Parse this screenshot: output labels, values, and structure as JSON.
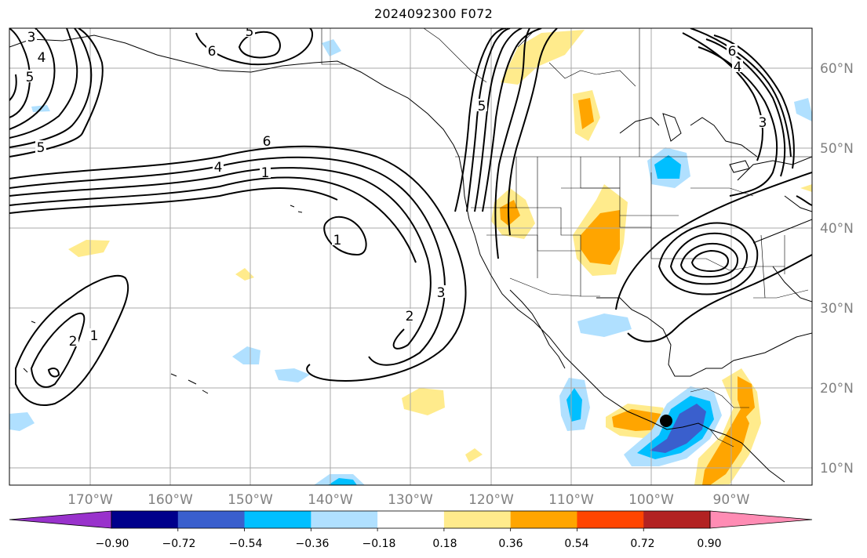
{
  "title": "2024092300 F072",
  "lon_labels": [
    "170°W",
    "160°W",
    "150°W",
    "140°W",
    "130°W",
    "120°W",
    "110°W",
    "100°W",
    "90°W"
  ],
  "lat_labels": [
    "60°N",
    "50°N",
    "40°N",
    "30°N",
    "20°N",
    "10°N"
  ],
  "colorbar": {
    "tick_labels": [
      "−0.90",
      "−0.72",
      "−0.54",
      "−0.36",
      "−0.18",
      "0.18",
      "0.36",
      "0.54",
      "0.72",
      "0.90"
    ],
    "colors": [
      "#9932cc",
      "#00008b",
      "#3a5fcd",
      "#00bfff",
      "#b0e0ff",
      "#ffffff",
      "#ffeb8c",
      "#ffa500",
      "#ff4500",
      "#b22222",
      "#ff8cb4"
    ]
  },
  "contour_labels": [
    {
      "text": "3"
    },
    {
      "text": "4"
    },
    {
      "text": "5"
    },
    {
      "text": "6"
    },
    {
      "text": "5"
    },
    {
      "text": "5"
    },
    {
      "text": "6"
    },
    {
      "text": "4"
    },
    {
      "text": "1"
    },
    {
      "text": "1"
    },
    {
      "text": "5"
    },
    {
      "text": "3"
    },
    {
      "text": "2"
    },
    {
      "text": "1"
    },
    {
      "text": "2"
    },
    {
      "text": "6"
    },
    {
      "text": "4"
    },
    {
      "text": "3"
    }
  ],
  "colors": {
    "contour": "#000000",
    "grid": "#a9a9a9",
    "coast": "#000000",
    "axis_label": "#808080"
  }
}
